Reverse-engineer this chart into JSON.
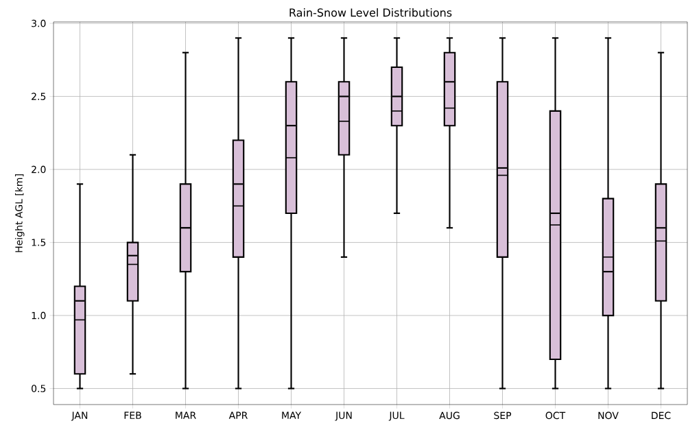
{
  "chart_data": {
    "type": "box",
    "title": "Rain-Snow Level  Distributions",
    "ylabel": "Height AGL [km]",
    "categories": [
      "JAN",
      "FEB",
      "MAR",
      "APR",
      "MAY",
      "JUN",
      "JUL",
      "AUG",
      "SEP",
      "OCT",
      "NOV",
      "DEC"
    ],
    "color": "#d8bfd8",
    "boxes": [
      {
        "low": 0.5,
        "q1": 0.6,
        "median": 0.97,
        "q3": 1.2,
        "high": 1.9,
        "mean": 1.1
      },
      {
        "low": 0.6,
        "q1": 1.1,
        "median": 1.35,
        "q3": 1.5,
        "high": 2.1,
        "mean": 1.41
      },
      {
        "low": 0.5,
        "q1": 1.3,
        "median": 1.6,
        "q3": 1.9,
        "high": 2.8,
        "mean": 1.6
      },
      {
        "low": 0.5,
        "q1": 1.4,
        "median": 1.75,
        "q3": 2.2,
        "high": 2.9,
        "mean": 1.9
      },
      {
        "low": 0.5,
        "q1": 1.7,
        "median": 2.08,
        "q3": 2.6,
        "high": 2.9,
        "mean": 2.3
      },
      {
        "low": 1.4,
        "q1": 2.1,
        "median": 2.33,
        "q3": 2.6,
        "high": 2.9,
        "mean": 2.5
      },
      {
        "low": 1.7,
        "q1": 2.3,
        "median": 2.4,
        "q3": 2.7,
        "high": 2.9,
        "mean": 2.5
      },
      {
        "low": 1.6,
        "q1": 2.3,
        "median": 2.42,
        "q3": 2.8,
        "high": 2.9,
        "mean": 2.6
      },
      {
        "low": 0.5,
        "q1": 1.4,
        "median": 1.96,
        "q3": 2.6,
        "high": 2.9,
        "mean": 2.01
      },
      {
        "low": 0.5,
        "q1": 0.7,
        "median": 1.62,
        "q3": 2.4,
        "high": 2.9,
        "mean": 1.7
      },
      {
        "low": 0.5,
        "q1": 1.0,
        "median": 1.4,
        "q3": 1.8,
        "high": 2.9,
        "mean": 1.3
      },
      {
        "low": 0.5,
        "q1": 1.1,
        "median": 1.51,
        "q3": 1.9,
        "high": 2.8,
        "mean": 1.6
      }
    ],
    "ylim": [
      0.39,
      3.01
    ],
    "yticks": [
      {
        "value": 0.5,
        "label": "0.5"
      },
      {
        "value": 1.0,
        "label": "1.0"
      },
      {
        "value": 1.5,
        "label": "1.5"
      },
      {
        "value": 2.0,
        "label": "2.0"
      },
      {
        "value": 2.5,
        "label": "2.5"
      },
      {
        "value": 3.0,
        "label": "3.0"
      }
    ],
    "grid": true
  }
}
